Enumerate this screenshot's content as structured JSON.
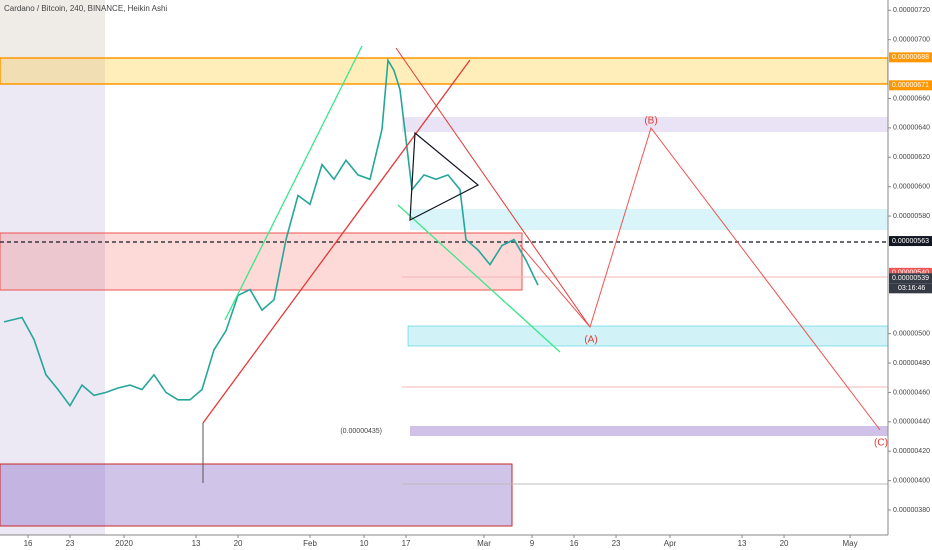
{
  "chart_data": {
    "type": "line",
    "title": "Cardano / Bitcoin, 240, BINANCE, Heikin Ashi",
    "color": "#26a69a",
    "x": [
      -4,
      -1,
      1,
      3,
      5,
      7,
      9,
      11,
      13,
      15,
      17,
      19,
      21,
      23,
      25,
      27,
      29,
      31,
      33,
      35,
      37,
      39,
      41,
      43,
      45,
      47,
      49,
      51,
      53,
      55,
      57,
      59,
      60,
      61,
      62,
      63,
      64,
      66,
      68,
      70,
      72,
      73,
      75,
      77,
      79,
      81,
      83,
      85
    ],
    "values": [
      5.08e-06,
      5.11e-06,
      4.96e-06,
      4.72e-06,
      4.62e-06,
      4.51e-06,
      4.65e-06,
      4.58e-06,
      4.6e-06,
      4.63e-06,
      4.65e-06,
      4.62e-06,
      4.72e-06,
      4.6e-06,
      4.55e-06,
      4.55e-06,
      4.62e-06,
      4.89e-06,
      5.02e-06,
      5.26e-06,
      5.3e-06,
      5.16e-06,
      5.23e-06,
      5.64e-06,
      5.94e-06,
      5.88e-06,
      6.15e-06,
      6.05e-06,
      6.18e-06,
      6.08e-06,
      6.05e-06,
      6.39e-06,
      6.86e-06,
      6.79e-06,
      6.66e-06,
      6.32e-06,
      5.98e-06,
      6.08e-06,
      6.05e-06,
      6.08e-06,
      5.98e-06,
      5.64e-06,
      5.57e-06,
      5.47e-06,
      5.6e-06,
      5.64e-06,
      5.5e-06,
      5.33e-06
    ],
    "xlim": [
      -4.67,
      143.33
    ],
    "xticks": [
      {
        "value": 0,
        "label": "16"
      },
      {
        "value": 7,
        "label": "23"
      },
      {
        "value": 16,
        "label": "2020"
      },
      {
        "value": 28,
        "label": "13"
      },
      {
        "value": 35,
        "label": "20"
      },
      {
        "value": 47,
        "label": "Feb"
      },
      {
        "value": 56,
        "label": "10"
      },
      {
        "value": 63,
        "label": "17"
      },
      {
        "value": 76,
        "label": "Mar"
      },
      {
        "value": 84,
        "label": "9"
      },
      {
        "value": 91,
        "label": "16"
      },
      {
        "value": 98,
        "label": "23"
      },
      {
        "value": 107,
        "label": "Apr"
      },
      {
        "value": 119,
        "label": "13"
      },
      {
        "value": 126,
        "label": "20"
      },
      {
        "value": 137,
        "label": "May"
      }
    ],
    "ylim": [
      3.63e-06,
      7.27e-06
    ],
    "yticks": [
      {
        "value": 7.2e-06,
        "label": "0.00000720"
      },
      {
        "value": 7e-06,
        "label": "0.00000700"
      },
      {
        "value": 6.6e-06,
        "label": "0.00000660"
      },
      {
        "value": 6.4e-06,
        "label": "0.00000640"
      },
      {
        "value": 6.2e-06,
        "label": "0.00000620"
      },
      {
        "value": 6e-06,
        "label": "0.00000600"
      },
      {
        "value": 5.8e-06,
        "label": "0.00000580"
      },
      {
        "value": 5e-06,
        "label": "0.00000500"
      },
      {
        "value": 4.8e-06,
        "label": "0.00000480"
      },
      {
        "value": 4.6e-06,
        "label": "0.00000460"
      },
      {
        "value": 4.4e-06,
        "label": "0.00000440"
      },
      {
        "value": 4.2e-06,
        "label": "0.00000420"
      },
      {
        "value": 4e-06,
        "label": "0.00000400"
      },
      {
        "value": 3.8e-06,
        "label": "0.00000380"
      }
    ],
    "price_labels": [
      {
        "value": 6.88e-06,
        "label": "0.00000688",
        "color": "#ff9800"
      },
      {
        "value": 6.71e-06,
        "label": "0.00000671",
        "color": "#ff9800"
      },
      {
        "value": 5.63e-06,
        "label": "0.00000563",
        "color": "#131722"
      },
      {
        "value": 5.4e-06,
        "label": "0.00000540",
        "color": "#ef5350"
      },
      {
        "value": 5.39e-06,
        "label": "0.00000539",
        "color": "#363a45"
      }
    ],
    "countdown": "03:16:46",
    "annotations": [
      "(A)",
      "(B)",
      "(C)",
      "(0.00000435)"
    ]
  }
}
